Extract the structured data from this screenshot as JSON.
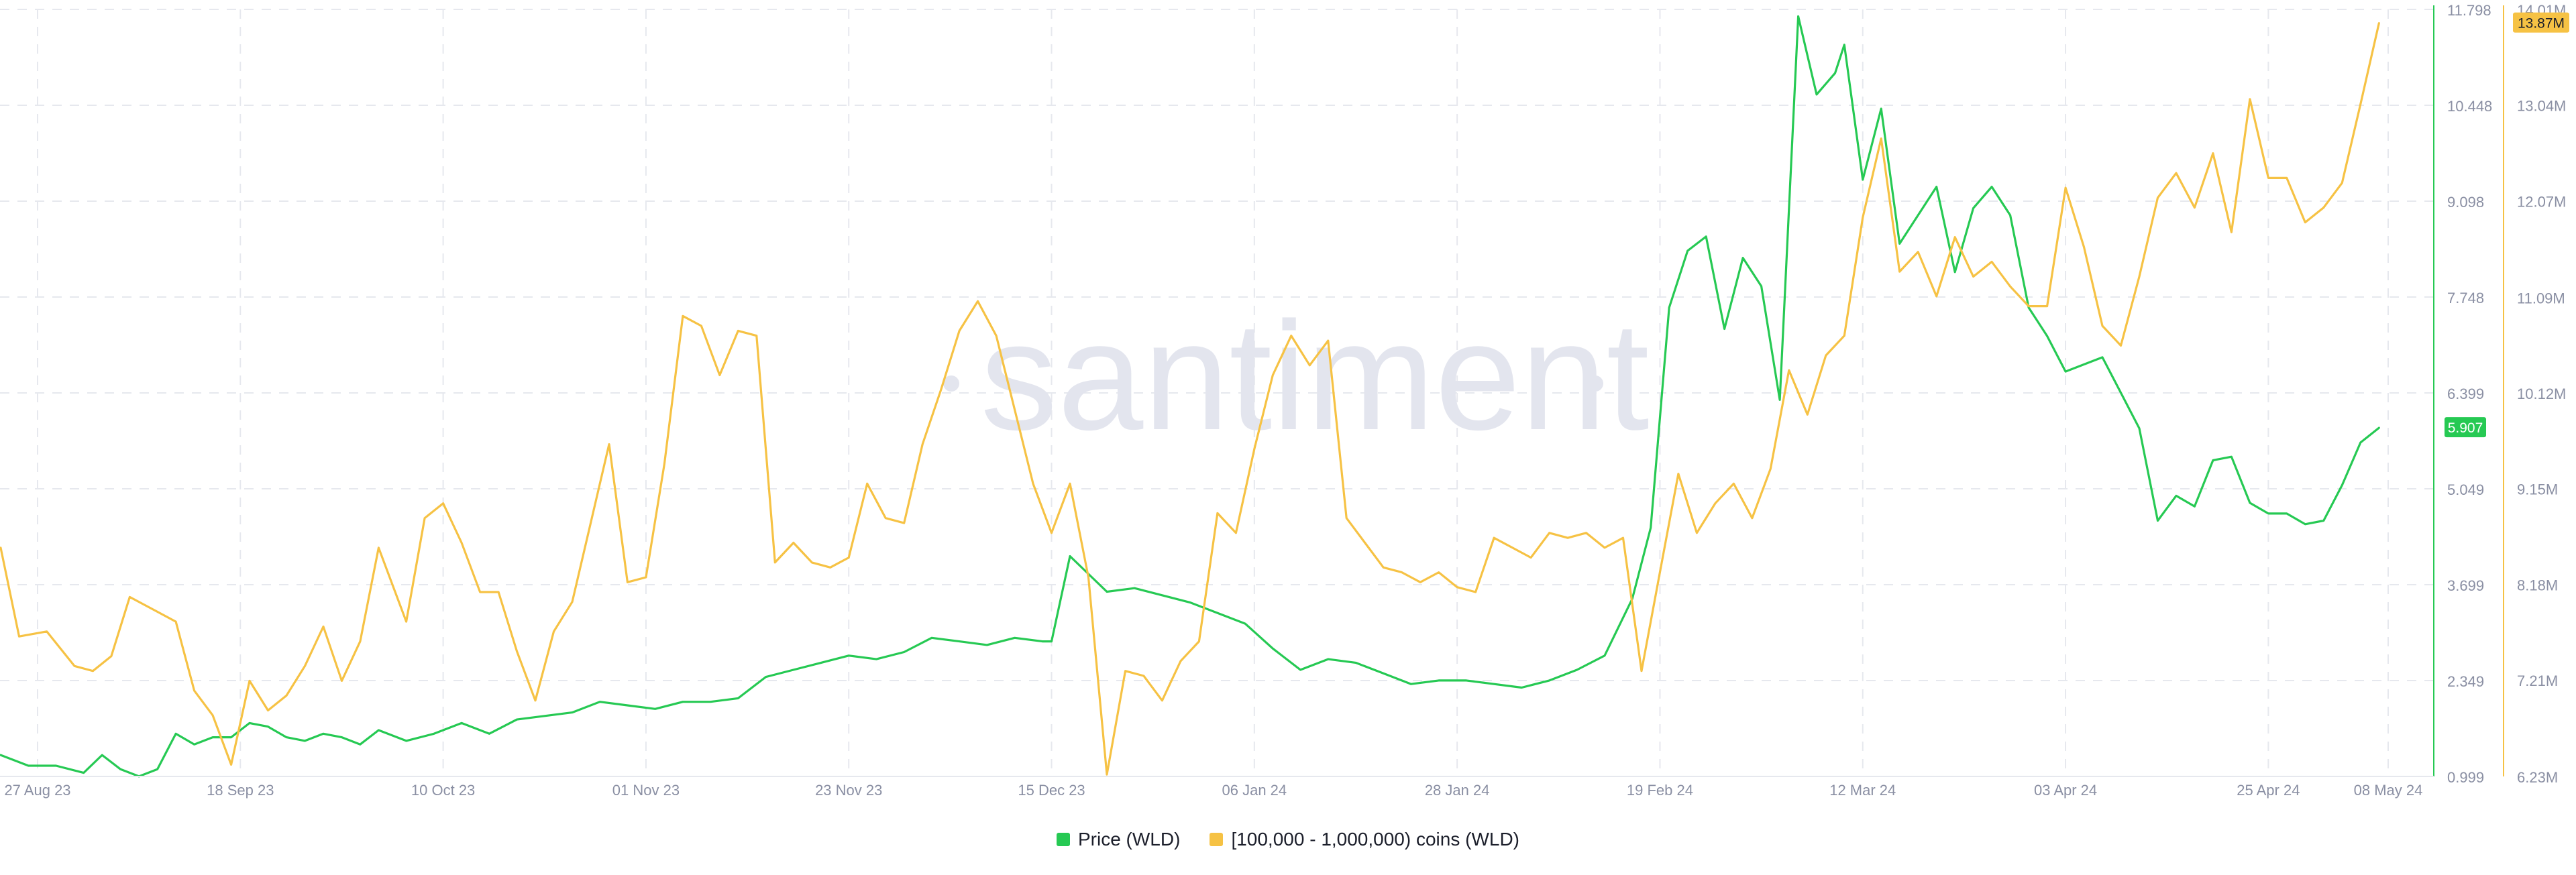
{
  "watermark": "santiment",
  "chart_data": {
    "type": "line",
    "x_ticks": [
      "27 Aug 23",
      "18 Sep 23",
      "10 Oct 23",
      "01 Nov 23",
      "23 Nov 23",
      "15 Dec 23",
      "06 Jan 24",
      "28 Jan 24",
      "19 Feb 24",
      "12 Mar 24",
      "03 Apr 24",
      "25 Apr 24",
      "08 May 24"
    ],
    "x_range": [
      "2023-08-23",
      "2024-05-08"
    ],
    "y_left": {
      "ticks": [
        "0.999",
        "2.349",
        "3.699",
        "5.049",
        "6.399",
        "7.748",
        "9.098",
        "10.448",
        "11.798"
      ],
      "range": [
        0.999,
        11.798
      ],
      "current_label": "5.907",
      "current_color": "#26c953"
    },
    "y_right": {
      "ticks": [
        "6.23M",
        "7.21M",
        "8.18M",
        "9.15M",
        "10.12M",
        "11.09M",
        "12.07M",
        "13.04M",
        "14.01M"
      ],
      "range": [
        6.23,
        14.01
      ],
      "unit": "M",
      "current_label": "13.87M",
      "current_color": "#f6c244"
    },
    "grid": true,
    "legend_placement": "bottom-center",
    "series": [
      {
        "name": "Price (WLD)",
        "color": "#26c953",
        "axis": "left",
        "x": [
          "2023-08-23",
          "2023-08-26",
          "2023-08-29",
          "2023-09-01",
          "2023-09-03",
          "2023-09-05",
          "2023-09-07",
          "2023-09-09",
          "2023-09-11",
          "2023-09-13",
          "2023-09-15",
          "2023-09-17",
          "2023-09-19",
          "2023-09-21",
          "2023-09-23",
          "2023-09-25",
          "2023-09-27",
          "2023-09-29",
          "2023-10-01",
          "2023-10-03",
          "2023-10-06",
          "2023-10-09",
          "2023-10-12",
          "2023-10-15",
          "2023-10-18",
          "2023-10-21",
          "2023-10-24",
          "2023-10-27",
          "2023-10-30",
          "2023-11-02",
          "2023-11-05",
          "2023-11-08",
          "2023-11-11",
          "2023-11-14",
          "2023-11-17",
          "2023-11-20",
          "2023-11-23",
          "2023-11-26",
          "2023-11-29",
          "2023-12-02",
          "2023-12-05",
          "2023-12-08",
          "2023-12-11",
          "2023-12-14",
          "2023-12-15",
          "2023-12-17",
          "2023-12-19",
          "2023-12-21",
          "2023-12-24",
          "2023-12-27",
          "2023-12-30",
          "2024-01-02",
          "2024-01-05",
          "2024-01-08",
          "2024-01-11",
          "2024-01-14",
          "2024-01-17",
          "2024-01-20",
          "2024-01-23",
          "2024-01-26",
          "2024-01-29",
          "2024-02-01",
          "2024-02-04",
          "2024-02-07",
          "2024-02-10",
          "2024-02-13",
          "2024-02-16",
          "2024-02-18",
          "2024-02-20",
          "2024-02-22",
          "2024-02-24",
          "2024-02-26",
          "2024-02-28",
          "2024-03-01",
          "2024-03-03",
          "2024-03-05",
          "2024-03-07",
          "2024-03-09",
          "2024-03-10",
          "2024-03-12",
          "2024-03-14",
          "2024-03-16",
          "2024-03-18",
          "2024-03-20",
          "2024-03-22",
          "2024-03-24",
          "2024-03-26",
          "2024-03-28",
          "2024-03-30",
          "2024-04-01",
          "2024-04-03",
          "2024-04-05",
          "2024-04-07",
          "2024-04-09",
          "2024-04-11",
          "2024-04-13",
          "2024-04-15",
          "2024-04-17",
          "2024-04-19",
          "2024-04-21",
          "2024-04-23",
          "2024-04-25",
          "2024-04-27",
          "2024-04-29",
          "2024-05-01",
          "2024-05-03",
          "2024-05-05",
          "2024-05-07"
        ],
        "values": [
          1.3,
          1.15,
          1.15,
          1.05,
          1.3,
          1.1,
          1.0,
          1.1,
          1.6,
          1.45,
          1.55,
          1.55,
          1.75,
          1.7,
          1.55,
          1.5,
          1.6,
          1.55,
          1.45,
          1.65,
          1.5,
          1.6,
          1.75,
          1.6,
          1.8,
          1.85,
          1.9,
          2.05,
          2.0,
          1.95,
          2.05,
          2.05,
          2.1,
          2.4,
          2.5,
          2.6,
          2.7,
          2.65,
          2.75,
          2.95,
          2.9,
          2.85,
          2.95,
          2.9,
          2.9,
          4.1,
          3.85,
          3.6,
          3.65,
          3.55,
          3.45,
          3.3,
          3.15,
          2.8,
          2.5,
          2.65,
          2.6,
          2.45,
          2.3,
          2.35,
          2.35,
          2.3,
          2.25,
          2.35,
          2.5,
          2.7,
          3.5,
          4.5,
          7.6,
          8.4,
          8.6,
          7.3,
          8.3,
          7.9,
          6.3,
          11.7,
          10.6,
          10.9,
          11.3,
          9.4,
          10.4,
          8.5,
          8.9,
          9.3,
          8.1,
          9.0,
          9.3,
          8.9,
          7.6,
          7.2,
          6.7,
          6.8,
          6.9,
          6.4,
          5.9,
          4.6,
          4.95,
          4.8,
          5.45,
          5.5,
          4.85,
          4.7,
          4.7,
          4.55,
          4.6,
          5.1,
          5.7,
          5.907
        ]
      },
      {
        "name": "[100,000  - 1,000,000) coins (WLD)",
        "color": "#f6c244",
        "axis": "right",
        "x": [
          "2023-08-23",
          "2023-08-25",
          "2023-08-28",
          "2023-08-31",
          "2023-09-02",
          "2023-09-04",
          "2023-09-06",
          "2023-09-09",
          "2023-09-11",
          "2023-09-13",
          "2023-09-15",
          "2023-09-17",
          "2023-09-19",
          "2023-09-21",
          "2023-09-23",
          "2023-09-25",
          "2023-09-27",
          "2023-09-29",
          "2023-10-01",
          "2023-10-03",
          "2023-10-06",
          "2023-10-08",
          "2023-10-10",
          "2023-10-12",
          "2023-10-14",
          "2023-10-16",
          "2023-10-18",
          "2023-10-20",
          "2023-10-22",
          "2023-10-24",
          "2023-10-26",
          "2023-10-28",
          "2023-10-30",
          "2023-11-01",
          "2023-11-03",
          "2023-11-05",
          "2023-11-07",
          "2023-11-09",
          "2023-11-11",
          "2023-11-13",
          "2023-11-15",
          "2023-11-17",
          "2023-11-19",
          "2023-11-21",
          "2023-11-23",
          "2023-11-25",
          "2023-11-27",
          "2023-11-29",
          "2023-12-01",
          "2023-12-03",
          "2023-12-05",
          "2023-12-07",
          "2023-12-09",
          "2023-12-11",
          "2023-12-13",
          "2023-12-15",
          "2023-12-17",
          "2023-12-19",
          "2023-12-21",
          "2023-12-23",
          "2023-12-25",
          "2023-12-27",
          "2023-12-29",
          "2023-12-31",
          "2024-01-02",
          "2024-01-04",
          "2024-01-06",
          "2024-01-08",
          "2024-01-10",
          "2024-01-12",
          "2024-01-14",
          "2024-01-16",
          "2024-01-18",
          "2024-01-20",
          "2024-01-22",
          "2024-01-24",
          "2024-01-26",
          "2024-01-28",
          "2024-01-30",
          "2024-02-01",
          "2024-02-03",
          "2024-02-05",
          "2024-02-07",
          "2024-02-09",
          "2024-02-11",
          "2024-02-13",
          "2024-02-15",
          "2024-02-17",
          "2024-02-19",
          "2024-02-21",
          "2024-02-23",
          "2024-02-25",
          "2024-02-27",
          "2024-02-29",
          "2024-03-02",
          "2024-03-04",
          "2024-03-06",
          "2024-03-08",
          "2024-03-10",
          "2024-03-12",
          "2024-03-14",
          "2024-03-16",
          "2024-03-18",
          "2024-03-20",
          "2024-03-22",
          "2024-03-24",
          "2024-03-26",
          "2024-03-28",
          "2024-03-30",
          "2024-04-01",
          "2024-04-03",
          "2024-04-05",
          "2024-04-07",
          "2024-04-09",
          "2024-04-11",
          "2024-04-13",
          "2024-04-15",
          "2024-04-17",
          "2024-04-19",
          "2024-04-21",
          "2024-04-23",
          "2024-04-25",
          "2024-04-27",
          "2024-04-29",
          "2024-05-01",
          "2024-05-03",
          "2024-05-05",
          "2024-05-07"
        ],
        "values": [
          8.55,
          7.65,
          7.7,
          7.35,
          7.3,
          7.45,
          8.05,
          7.9,
          7.8,
          7.1,
          6.85,
          6.35,
          7.2,
          6.9,
          7.05,
          7.35,
          7.75,
          7.2,
          7.6,
          8.55,
          7.8,
          8.85,
          9.0,
          8.6,
          8.1,
          8.1,
          7.5,
          7.0,
          7.7,
          8.0,
          8.8,
          9.6,
          8.2,
          8.25,
          9.4,
          10.9,
          10.8,
          10.3,
          10.75,
          10.7,
          8.4,
          8.6,
          8.4,
          8.35,
          8.45,
          9.2,
          8.85,
          8.8,
          9.6,
          10.15,
          10.75,
          11.05,
          10.7,
          9.95,
          9.2,
          8.7,
          9.2,
          8.25,
          6.25,
          7.3,
          7.25,
          7.0,
          7.4,
          7.6,
          8.9,
          8.7,
          9.55,
          10.3,
          10.7,
          10.4,
          10.65,
          8.85,
          8.6,
          8.35,
          8.3,
          8.2,
          8.3,
          8.15,
          8.1,
          8.65,
          8.55,
          8.45,
          8.7,
          8.65,
          8.7,
          8.55,
          8.65,
          7.3,
          8.3,
          9.3,
          8.7,
          9.0,
          9.2,
          8.85,
          9.35,
          10.35,
          9.9,
          10.5,
          10.7,
          11.9,
          12.7,
          11.35,
          11.55,
          11.1,
          11.7,
          11.3,
          11.45,
          11.2,
          11.0,
          11.0,
          12.2,
          11.6,
          10.8,
          10.6,
          11.3,
          12.1,
          12.35,
          12.0,
          12.55,
          11.75,
          13.1,
          12.3,
          12.3,
          11.85,
          12.0,
          12.25,
          13.05,
          13.87
        ]
      }
    ]
  }
}
